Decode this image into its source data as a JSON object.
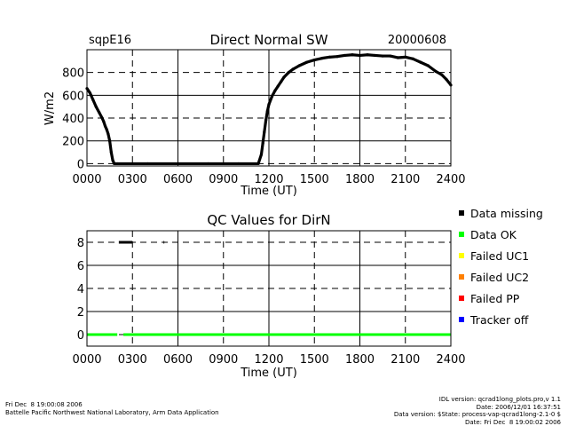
{
  "header": {
    "site": "sqpE16",
    "date": "20000608"
  },
  "chart_data": [
    {
      "type": "scatter",
      "title": "Direct Normal SW",
      "xlabel": "Time (UT)",
      "ylabel": "W/m2",
      "xlim": [
        0,
        2400
      ],
      "ylim": [
        -20,
        1000
      ],
      "x_ticks": [
        "0000",
        "0300",
        "0600",
        "0900",
        "1200",
        "1500",
        "1800",
        "2100",
        "2400"
      ],
      "y_ticks": [
        "0",
        "200",
        "400",
        "600",
        "800"
      ],
      "x_tick_values": [
        0,
        300,
        600,
        900,
        1200,
        1500,
        1800,
        2100,
        2400
      ],
      "y_tick_values": [
        0,
        200,
        400,
        600,
        800
      ],
      "grid": "dashed, solid at 0600/1200/1800 and 200/600",
      "series": [
        {
          "color": "#000000",
          "x": [
            0,
            20,
            40,
            60,
            80,
            100,
            110,
            120,
            130,
            140,
            150,
            160,
            170,
            180,
            200,
            400,
            600,
            800,
            1000,
            1130,
            1150,
            1160,
            1170,
            1180,
            1190,
            1200,
            1220,
            1240,
            1260,
            1280,
            1300,
            1330,
            1360,
            1400,
            1450,
            1500,
            1550,
            1600,
            1650,
            1700,
            1750,
            1800,
            1850,
            1900,
            1950,
            2000,
            2050,
            2100,
            2150,
            2200,
            2250,
            2300,
            2340,
            2370,
            2400
          ],
          "y": [
            660,
            620,
            560,
            500,
            450,
            400,
            370,
            330,
            300,
            260,
            200,
            100,
            30,
            0,
            0,
            0,
            0,
            0,
            0,
            0,
            80,
            180,
            280,
            380,
            460,
            520,
            590,
            640,
            680,
            720,
            760,
            800,
            830,
            860,
            890,
            910,
            925,
            935,
            940,
            950,
            955,
            950,
            955,
            950,
            945,
            945,
            930,
            935,
            920,
            890,
            860,
            810,
            780,
            740,
            690
          ]
        }
      ]
    },
    {
      "type": "scatter",
      "title": "QC Values for DirN",
      "xlabel": "Time (UT)",
      "ylabel": "",
      "xlim": [
        0,
        2400
      ],
      "ylim": [
        -1,
        9
      ],
      "x_ticks": [
        "0000",
        "0300",
        "0600",
        "0900",
        "1200",
        "1500",
        "1800",
        "2100",
        "2400"
      ],
      "y_ticks": [
        "0",
        "2",
        "4",
        "6",
        "8"
      ],
      "x_tick_values": [
        0,
        300,
        600,
        900,
        1200,
        1500,
        1800,
        2100,
        2400
      ],
      "y_tick_values": [
        0,
        2,
        4,
        6,
        8
      ],
      "grid": "dashed, solid at 0600/1200/1800 and 2/6",
      "series": [
        {
          "color": "#000000",
          "segments": [
            [
              210,
              300
            ],
            [
              505,
              510
            ]
          ],
          "y": 8
        },
        {
          "color": "#00ff00",
          "segments": [
            [
              0,
              200
            ],
            [
              240,
              2400
            ]
          ],
          "y": 0
        }
      ]
    }
  ],
  "legend": [
    {
      "label": "Data missing",
      "color": "#000000"
    },
    {
      "label": "Data OK",
      "color": "#00ff00"
    },
    {
      "label": "Failed UC1",
      "color": "#ffff00"
    },
    {
      "label": "Failed UC2",
      "color": "#ff8000"
    },
    {
      "label": "Failed PP",
      "color": "#ff0000"
    },
    {
      "label": "Tracker off",
      "color": "#0000ff"
    }
  ],
  "footer": {
    "left_line1": "Fri Dec  8 19:00:08 2006",
    "left_line2": "Battelle Pacific Northwest National Laboratory, Arm Data Application",
    "right_line1": "IDL version: qcrad1long_plots.pro,v 1.1",
    "right_line2": "Date: 2006/12/01 16:37:51",
    "right_line3": "Data version: $State: process-vap-qcrad1long-2.1-0 $",
    "right_line4": "Date: Fri Dec  8 19:00:02 2006"
  }
}
